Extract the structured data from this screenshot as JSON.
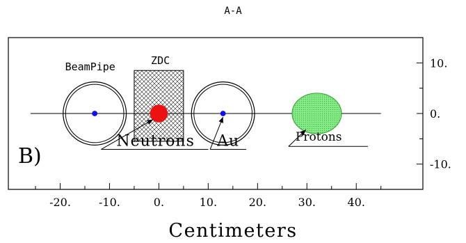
{
  "chart_data": {
    "type": "scatter",
    "title": "A-A",
    "panel_label": "B)",
    "xlabel": "Centimeters",
    "ylabel": "",
    "xlim": [
      -30.5,
      53.5
    ],
    "ylim": [
      -15,
      15
    ],
    "x_ticks": [
      -20,
      -10,
      0,
      10,
      20,
      30,
      40
    ],
    "x_tick_labels": [
      "-20.",
      "-10.",
      "0.",
      "10.",
      "20.",
      "30.",
      "40."
    ],
    "y_ticks": [
      10,
      0,
      -10
    ],
    "y_tick_labels": [
      "10.",
      "0.",
      "-10."
    ],
    "beamline_y": 0,
    "beamline_x_range": [
      -26,
      45
    ],
    "beampipes": [
      {
        "name": "BeamPipe",
        "x": -13,
        "y": 0,
        "outer_radius": 6.4,
        "inner_radius": 5.9
      },
      {
        "name": "Au",
        "x": 13,
        "y": 0,
        "outer_radius": 6.4,
        "inner_radius": 5.9
      }
    ],
    "zdc": {
      "name": "ZDC",
      "x_range": [
        -5,
        5
      ],
      "y_range": [
        -5.5,
        8.5
      ]
    },
    "beams": [
      {
        "name": "Au",
        "x": -13,
        "y": 0,
        "radius": 0.55,
        "color": "#1010ee"
      },
      {
        "name": "Au",
        "x": 13,
        "y": 0,
        "radius": 0.55,
        "color": "#1010ee"
      },
      {
        "name": "Neutrons",
        "x": 0,
        "y": 0,
        "radius": 1.8,
        "color": "#ee1111"
      },
      {
        "name": "Protons",
        "x": 32,
        "y": 0,
        "rx": 5,
        "ry": 4,
        "color": "#7fe07f"
      }
    ],
    "annotations": [
      {
        "text": "BeamPipe",
        "x": -19,
        "y": 8.5
      },
      {
        "text": "ZDC",
        "x": -1.6,
        "y": 9.8
      },
      {
        "text": "Neutrons",
        "x": -8.6,
        "y": -6.4
      },
      {
        "text": "Au",
        "x": 11.8,
        "y": -6.4
      },
      {
        "text": "Protons",
        "x": 27.7,
        "y": -5.4
      }
    ],
    "grid": false,
    "colors": {
      "axis": "#000000",
      "beam": "#1010ee",
      "neutrons": "#ee1111",
      "protons": "#7fe07f"
    }
  }
}
